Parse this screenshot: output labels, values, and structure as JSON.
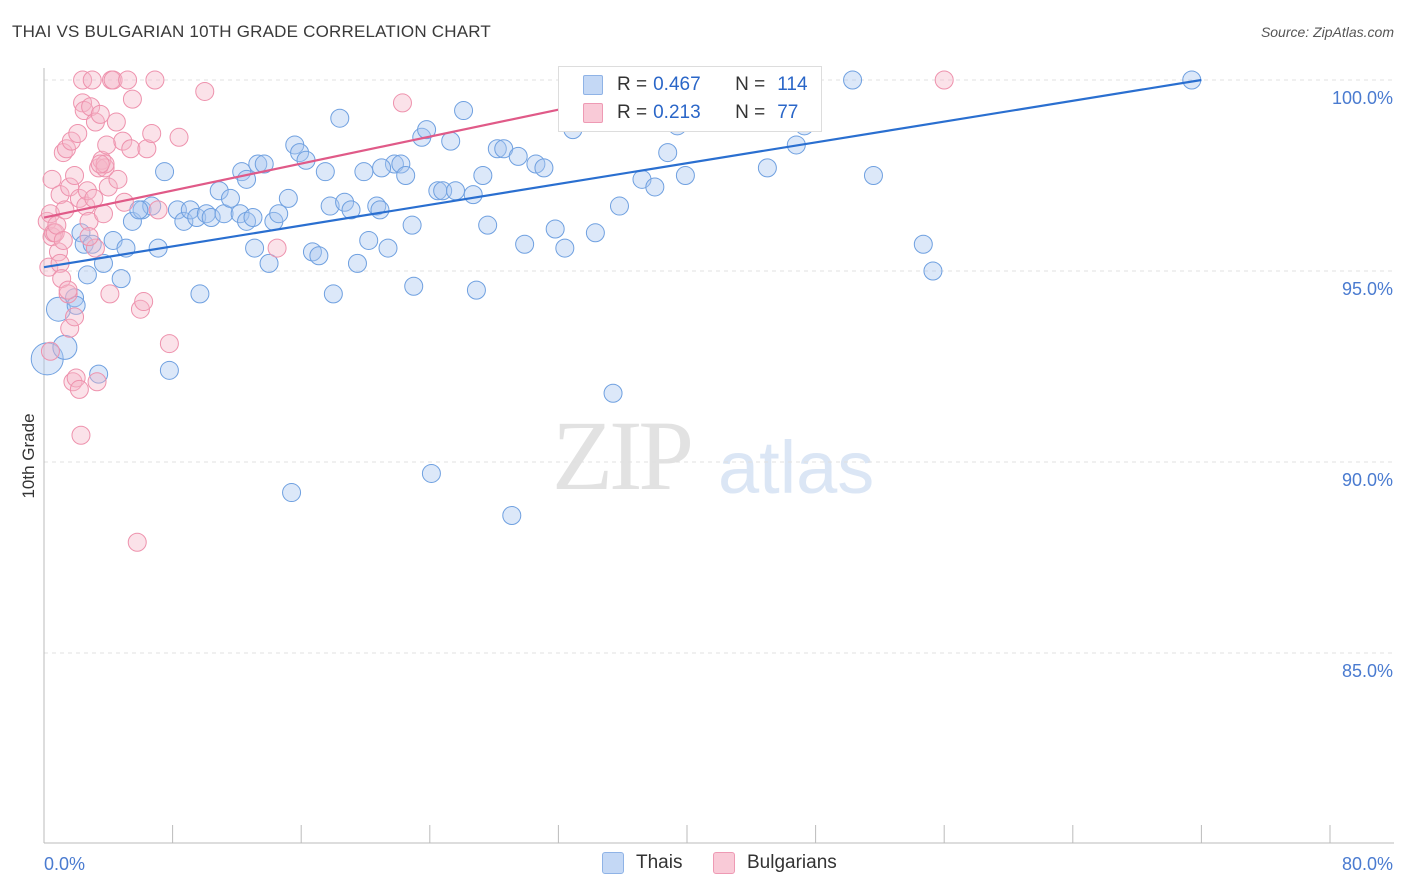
{
  "title": "THAI VS BULGARIAN 10TH GRADE CORRELATION CHART",
  "source": "Source: ZipAtlas.com",
  "watermark": {
    "zip": "ZIP",
    "atlas": "atlas"
  },
  "legend": [
    {
      "r_label": "R =",
      "r_value": "0.467",
      "n_label": "N =",
      "n_value": "114",
      "color": "#a8c6f0"
    },
    {
      "r_label": "R =",
      "r_value": "0.213",
      "n_label": "N =",
      "n_value": "77",
      "color": "#f6b6c8"
    }
  ],
  "bottom_legend": [
    {
      "label": "Thais",
      "color": "#a8c6f0"
    },
    {
      "label": "Bulgarians",
      "color": "#f6b6c8"
    }
  ],
  "chart_data": {
    "type": "scatter",
    "title": "THAI VS BULGARIAN 10TH GRADE CORRELATION CHART",
    "xlabel": "",
    "ylabel": "10th Grade",
    "xlim": [
      0,
      80
    ],
    "ylim": [
      80.5,
      100.3
    ],
    "x_tick_labels": [
      "0.0%",
      "80.0%"
    ],
    "y_ticks": [
      85,
      90,
      95,
      100
    ],
    "y_tick_labels": [
      "85.0%",
      "90.0%",
      "95.0%",
      "100.0%"
    ],
    "grid": true,
    "legend_position": "top-center",
    "series": [
      {
        "name": "Thais",
        "color": "#6fa0e0",
        "trend": {
          "x": [
            0,
            72
          ],
          "y": [
            95.1,
            100.0
          ]
        },
        "points": [
          [
            0.2,
            92.7
          ],
          [
            0.9,
            94.0
          ],
          [
            1.3,
            93.0
          ],
          [
            1.9,
            94.3
          ],
          [
            2.3,
            96.0
          ],
          [
            2.5,
            95.7
          ],
          [
            2.7,
            94.9
          ],
          [
            3.0,
            95.7
          ],
          [
            3.4,
            92.3
          ],
          [
            3.7,
            95.2
          ],
          [
            4.3,
            95.8
          ],
          [
            4.8,
            94.8
          ],
          [
            5.1,
            95.6
          ],
          [
            5.5,
            96.3
          ],
          [
            6.1,
            96.6
          ],
          [
            6.7,
            96.7
          ],
          [
            7.1,
            95.6
          ],
          [
            7.5,
            97.6
          ],
          [
            7.8,
            92.4
          ],
          [
            8.3,
            96.6
          ],
          [
            8.7,
            96.3
          ],
          [
            9.1,
            96.6
          ],
          [
            9.5,
            96.4
          ],
          [
            9.7,
            94.4
          ],
          [
            10.1,
            96.5
          ],
          [
            10.4,
            96.4
          ],
          [
            10.9,
            97.1
          ],
          [
            11.2,
            96.5
          ],
          [
            11.6,
            96.9
          ],
          [
            12.2,
            96.5
          ],
          [
            12.3,
            97.6
          ],
          [
            12.6,
            96.3
          ],
          [
            12.6,
            97.4
          ],
          [
            13.1,
            95.6
          ],
          [
            13.3,
            97.8
          ],
          [
            13.7,
            97.8
          ],
          [
            14.0,
            95.2
          ],
          [
            14.3,
            96.3
          ],
          [
            14.6,
            96.5
          ],
          [
            15.2,
            96.9
          ],
          [
            15.4,
            89.2
          ],
          [
            15.6,
            98.3
          ],
          [
            15.9,
            98.1
          ],
          [
            16.3,
            97.9
          ],
          [
            16.7,
            95.5
          ],
          [
            17.1,
            95.4
          ],
          [
            17.5,
            97.6
          ],
          [
            17.8,
            96.7
          ],
          [
            18.0,
            94.4
          ],
          [
            18.4,
            99.0
          ],
          [
            18.7,
            96.8
          ],
          [
            19.1,
            96.6
          ],
          [
            19.5,
            95.2
          ],
          [
            19.9,
            97.6
          ],
          [
            20.2,
            95.8
          ],
          [
            20.7,
            96.7
          ],
          [
            20.9,
            96.6
          ],
          [
            21.4,
            95.6
          ],
          [
            21.8,
            97.8
          ],
          [
            22.2,
            97.8
          ],
          [
            22.5,
            97.5
          ],
          [
            22.9,
            96.2
          ],
          [
            23.0,
            94.6
          ],
          [
            23.5,
            98.5
          ],
          [
            23.8,
            98.7
          ],
          [
            24.1,
            89.7
          ],
          [
            24.5,
            97.1
          ],
          [
            24.8,
            97.1
          ],
          [
            25.3,
            98.4
          ],
          [
            25.6,
            97.1
          ],
          [
            26.1,
            99.2
          ],
          [
            26.7,
            97.0
          ],
          [
            26.9,
            94.5
          ],
          [
            27.3,
            97.5
          ],
          [
            27.6,
            96.2
          ],
          [
            28.2,
            98.2
          ],
          [
            28.6,
            98.2
          ],
          [
            29.1,
            88.6
          ],
          [
            29.5,
            98.0
          ],
          [
            29.9,
            95.7
          ],
          [
            30.6,
            97.8
          ],
          [
            31.1,
            97.7
          ],
          [
            31.8,
            96.1
          ],
          [
            32.4,
            95.6
          ],
          [
            32.9,
            98.7
          ],
          [
            33.3,
            100.0
          ],
          [
            33.8,
            99.0
          ],
          [
            34.3,
            96.0
          ],
          [
            34.9,
            98.9
          ],
          [
            35.4,
            91.8
          ],
          [
            35.8,
            96.7
          ],
          [
            36.4,
            99.2
          ],
          [
            37.2,
            97.4
          ],
          [
            38.0,
            97.2
          ],
          [
            38.8,
            98.1
          ],
          [
            39.4,
            98.8
          ],
          [
            39.9,
            97.5
          ],
          [
            40.6,
            100.0
          ],
          [
            41.7,
            99.9
          ],
          [
            43.0,
            100.0
          ],
          [
            45.0,
            97.7
          ],
          [
            46.8,
            98.3
          ],
          [
            47.3,
            98.8
          ],
          [
            47.7,
            99.1
          ],
          [
            50.3,
            100.0
          ],
          [
            51.6,
            97.5
          ],
          [
            54.7,
            95.7
          ],
          [
            55.3,
            95.0
          ],
          [
            71.4,
            100.0
          ],
          [
            2.0,
            94.1
          ],
          [
            5.9,
            96.6
          ],
          [
            13.0,
            96.4
          ],
          [
            21.0,
            97.7
          ]
        ]
      },
      {
        "name": "Bulgarians",
        "color": "#ee92ad",
        "trend": {
          "x": [
            0,
            34
          ],
          "y": [
            96.4,
            99.4
          ]
        },
        "points": [
          [
            0.2,
            96.3
          ],
          [
            0.3,
            95.1
          ],
          [
            0.4,
            96.5
          ],
          [
            0.5,
            97.4
          ],
          [
            0.5,
            95.9
          ],
          [
            0.6,
            96.0
          ],
          [
            0.7,
            96.0
          ],
          [
            0.8,
            96.2
          ],
          [
            0.9,
            95.5
          ],
          [
            1.0,
            95.2
          ],
          [
            1.0,
            97.0
          ],
          [
            1.1,
            94.8
          ],
          [
            1.2,
            95.8
          ],
          [
            1.2,
            98.1
          ],
          [
            1.3,
            96.6
          ],
          [
            1.4,
            98.2
          ],
          [
            1.5,
            94.4
          ],
          [
            1.6,
            97.2
          ],
          [
            1.6,
            93.5
          ],
          [
            1.7,
            98.4
          ],
          [
            1.8,
            92.1
          ],
          [
            1.9,
            97.5
          ],
          [
            1.9,
            93.8
          ],
          [
            2.0,
            92.2
          ],
          [
            2.1,
            98.6
          ],
          [
            2.2,
            96.9
          ],
          [
            2.2,
            91.9
          ],
          [
            2.3,
            90.7
          ],
          [
            2.4,
            99.4
          ],
          [
            2.4,
            100.0
          ],
          [
            2.5,
            99.2
          ],
          [
            2.6,
            96.7
          ],
          [
            2.7,
            97.1
          ],
          [
            2.8,
            96.3
          ],
          [
            2.9,
            99.3
          ],
          [
            3.0,
            100.0
          ],
          [
            3.1,
            96.9
          ],
          [
            3.2,
            95.6
          ],
          [
            3.2,
            98.9
          ],
          [
            3.3,
            92.1
          ],
          [
            3.4,
            97.7
          ],
          [
            3.5,
            99.1
          ],
          [
            3.6,
            97.9
          ],
          [
            3.7,
            96.5
          ],
          [
            3.8,
            97.7
          ],
          [
            3.8,
            97.8
          ],
          [
            3.9,
            98.3
          ],
          [
            4.0,
            97.2
          ],
          [
            4.1,
            94.4
          ],
          [
            4.2,
            100.0
          ],
          [
            4.3,
            100.0
          ],
          [
            4.5,
            98.9
          ],
          [
            4.6,
            97.4
          ],
          [
            4.9,
            98.4
          ],
          [
            5.0,
            96.8
          ],
          [
            5.2,
            100.0
          ],
          [
            5.4,
            98.2
          ],
          [
            5.5,
            99.5
          ],
          [
            5.8,
            87.9
          ],
          [
            6.0,
            94.0
          ],
          [
            6.2,
            94.2
          ],
          [
            6.4,
            98.2
          ],
          [
            6.7,
            98.6
          ],
          [
            6.9,
            100.0
          ],
          [
            7.1,
            96.6
          ],
          [
            7.8,
            93.1
          ],
          [
            8.4,
            98.5
          ],
          [
            10.0,
            99.7
          ],
          [
            14.5,
            95.6
          ],
          [
            22.3,
            99.4
          ],
          [
            33.0,
            99.2
          ],
          [
            35.3,
            98.9
          ],
          [
            56.0,
            100.0
          ],
          [
            0.4,
            92.9
          ],
          [
            1.5,
            94.5
          ],
          [
            2.8,
            95.9
          ],
          [
            3.5,
            97.8
          ]
        ]
      }
    ]
  }
}
